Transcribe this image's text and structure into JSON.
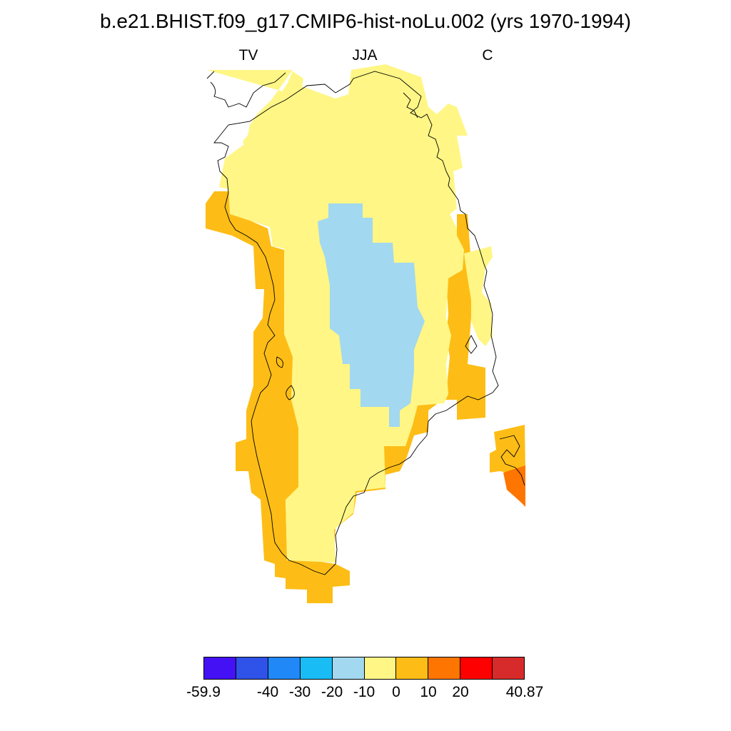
{
  "title": "b.e21.BHIST.f09_g17.CMIP6-hist-noLu.002 (yrs 1970-1994)",
  "subtitles": {
    "left": "TV",
    "center": "JJA",
    "right": "C"
  },
  "colorbar": {
    "colors": [
      "#4411f5",
      "#2f52e8",
      "#2188f8",
      "#19bcf5",
      "#a2d8f0",
      "#fff685",
      "#fdbd16",
      "#fe7502",
      "#fe0000",
      "#d72b2b"
    ],
    "tick_labels": [
      "-59.9",
      "-40",
      "-30",
      "-20",
      "-10",
      "0",
      "10",
      "20",
      "40.87"
    ]
  },
  "map": {
    "region": "Greenland",
    "variable_note": "filled gridded field with coastline outline",
    "fill_colors": {
      "ice_interior": "#fff685",
      "coastal_band": "#fdbd16",
      "central_dome": "#a2d8f0",
      "southeast_warm": "#fe7502"
    }
  }
}
